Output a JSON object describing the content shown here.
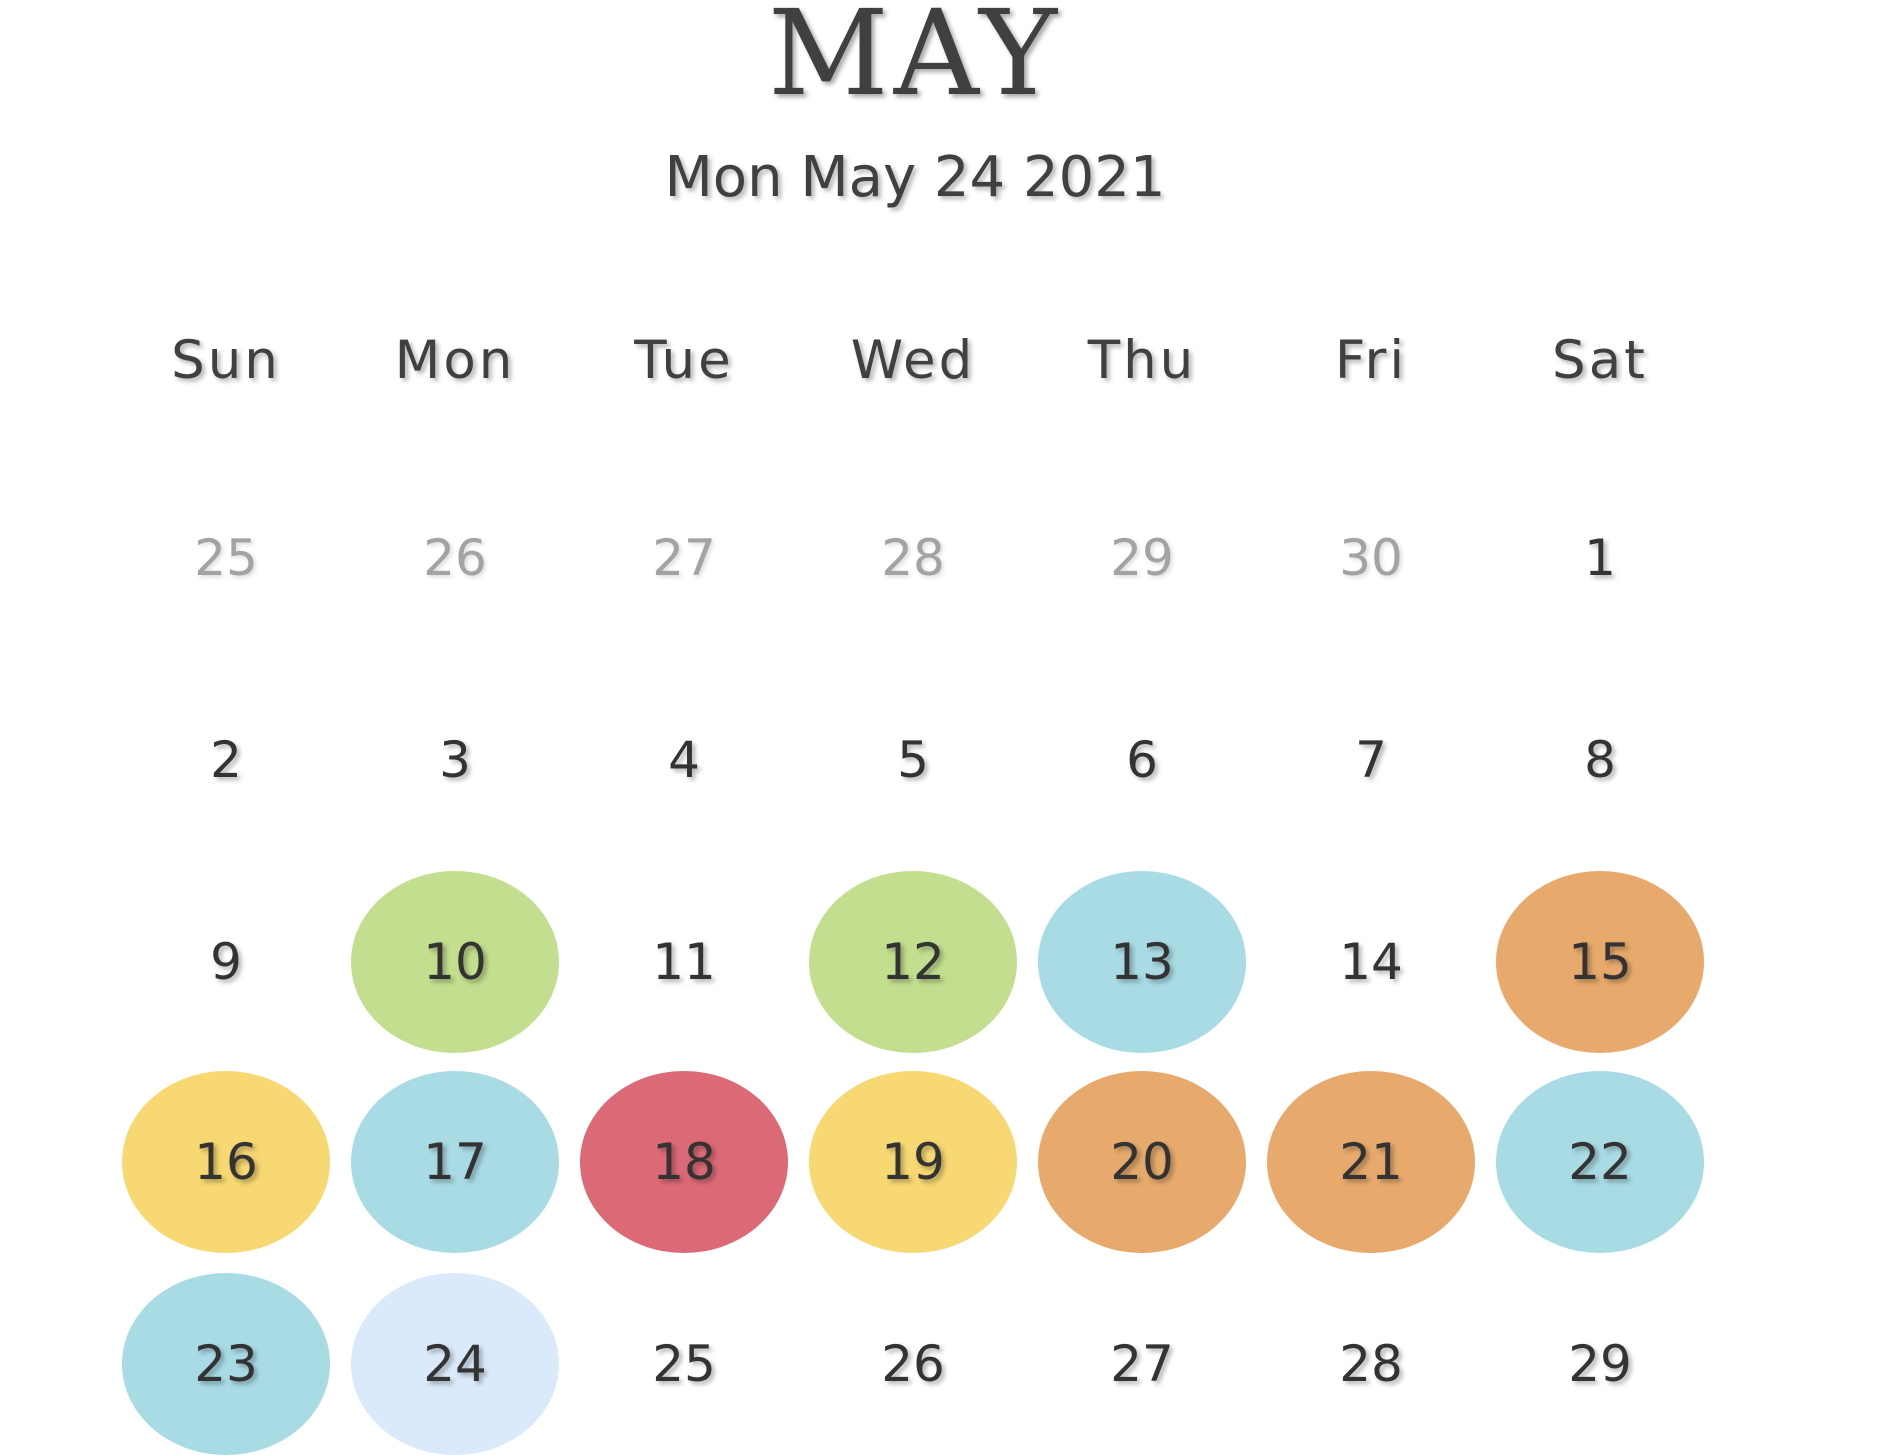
{
  "calendar": {
    "month": "MAY",
    "current_date": "Mon May 24 2021",
    "weekdays": [
      "Sun",
      "Mon",
      "Tue",
      "Wed",
      "Thu",
      "Fri",
      "Sat"
    ],
    "colors": {
      "green": "#c3de8f",
      "blue": "#a9dbe5",
      "orange": "#e7aa6c",
      "yellow": "#f7d872",
      "red": "#dc6a76",
      "selected": "#dbeafa"
    },
    "weeks": [
      [
        {
          "label": "25",
          "other_month": true
        },
        {
          "label": "26",
          "other_month": true
        },
        {
          "label": "27",
          "other_month": true
        },
        {
          "label": "28",
          "other_month": true
        },
        {
          "label": "29",
          "other_month": true
        },
        {
          "label": "30",
          "other_month": true
        },
        {
          "label": "1"
        }
      ],
      [
        {
          "label": "2"
        },
        {
          "label": "3"
        },
        {
          "label": "4"
        },
        {
          "label": "5"
        },
        {
          "label": "6"
        },
        {
          "label": "7"
        },
        {
          "label": "8"
        }
      ],
      [
        {
          "label": "9"
        },
        {
          "label": "10",
          "color": "#c3de8f"
        },
        {
          "label": "11"
        },
        {
          "label": "12",
          "color": "#c3de8f"
        },
        {
          "label": "13",
          "color": "#a9dbe5"
        },
        {
          "label": "14"
        },
        {
          "label": "15",
          "color": "#e7aa6c"
        }
      ],
      [
        {
          "label": "16",
          "color": "#f7d872"
        },
        {
          "label": "17",
          "color": "#a9dbe5"
        },
        {
          "label": "18",
          "color": "#dc6a76"
        },
        {
          "label": "19",
          "color": "#f7d872"
        },
        {
          "label": "20",
          "color": "#e7aa6c"
        },
        {
          "label": "21",
          "color": "#e7aa6c"
        },
        {
          "label": "22",
          "color": "#a9dbe5"
        }
      ],
      [
        {
          "label": "23",
          "color": "#a9dbe5"
        },
        {
          "label": "24",
          "color": "#dbeafa",
          "selected": true
        },
        {
          "label": "25"
        },
        {
          "label": "26"
        },
        {
          "label": "27"
        },
        {
          "label": "28"
        },
        {
          "label": "29"
        }
      ]
    ]
  }
}
